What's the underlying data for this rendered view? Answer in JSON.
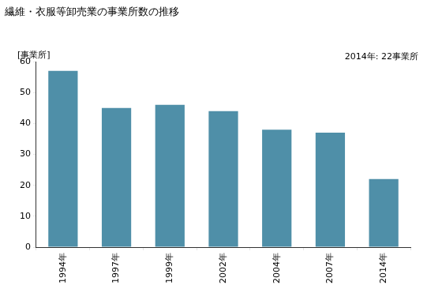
{
  "chart_data": {
    "type": "bar",
    "title": "繊維・衣服等卸売業の事業所数の推移",
    "y_label": "[事業所]",
    "annotation": "2014年: 22事業所",
    "categories": [
      "1994年",
      "1997年",
      "1999年",
      "2002年",
      "2004年",
      "2007年",
      "2014年"
    ],
    "values": [
      57,
      45,
      46,
      44,
      38,
      37,
      22
    ],
    "color": "#4f8fa8",
    "ylim": [
      0,
      60
    ],
    "yticks": [
      0,
      10,
      20,
      30,
      40,
      50,
      60
    ],
    "grid": false
  }
}
